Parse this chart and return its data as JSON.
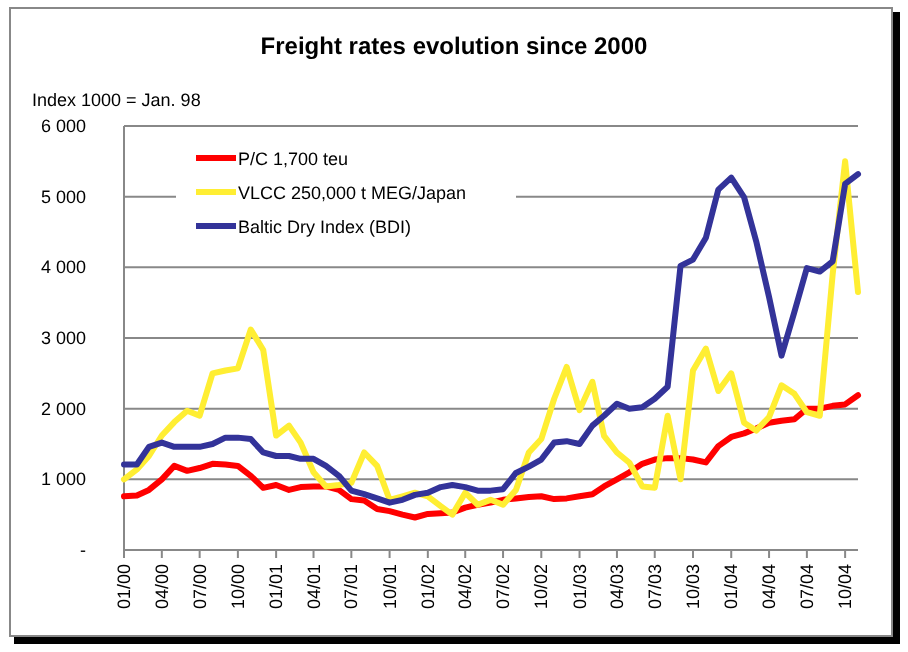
{
  "chart_data": {
    "type": "line",
    "title": "Freight rates evolution since 2000",
    "ylabel": "Index 1000 = Jan. 98",
    "x": [
      "2000-01",
      "2000-02",
      "2000-03",
      "2000-04",
      "2000-05",
      "2000-06",
      "2000-07",
      "2000-08",
      "2000-09",
      "2000-10",
      "2000-11",
      "2000-12",
      "2001-01",
      "2001-02",
      "2001-03",
      "2001-04",
      "2001-05",
      "2001-06",
      "2001-07",
      "2001-08",
      "2001-09",
      "2001-10",
      "2001-11",
      "2001-12",
      "2002-01",
      "2002-02",
      "2002-03",
      "2002-04",
      "2002-05",
      "2002-06",
      "2002-07",
      "2002-08",
      "2002-09",
      "2002-10",
      "2002-11",
      "2002-12",
      "2003-01",
      "2003-02",
      "2003-03",
      "2003-04",
      "2003-05",
      "2003-06",
      "2003-07",
      "2003-08",
      "2003-09",
      "2003-10",
      "2003-11",
      "2003-12",
      "2004-01",
      "2004-02",
      "2004-03",
      "2004-04",
      "2004-05",
      "2004-06",
      "2004-07",
      "2004-08",
      "2004-09",
      "2004-10",
      "2004-11"
    ],
    "series": [
      {
        "name": "P/C 1,700 teu",
        "color": "#ff0000",
        "values": [
          760,
          770,
          850,
          1000,
          1190,
          1120,
          1160,
          1220,
          1210,
          1190,
          1050,
          880,
          920,
          850,
          890,
          900,
          900,
          850,
          720,
          700,
          580,
          550,
          500,
          460,
          510,
          520,
          530,
          600,
          640,
          670,
          710,
          730,
          750,
          760,
          720,
          730,
          760,
          790,
          900,
          1000,
          1100,
          1220,
          1280,
          1300,
          1300,
          1280,
          1240,
          1470,
          1600,
          1650,
          1720,
          1800,
          1830,
          1850,
          2000,
          2000,
          2040,
          2060,
          2190
        ]
      },
      {
        "name": "VLCC 250,000 t MEG/Japan",
        "color": "#ffee33",
        "values": [
          1000,
          1140,
          1330,
          1620,
          1810,
          1970,
          1900,
          2500,
          2540,
          2570,
          3120,
          2830,
          1620,
          1760,
          1520,
          1100,
          900,
          920,
          950,
          1380,
          1190,
          710,
          760,
          810,
          760,
          620,
          500,
          810,
          640,
          710,
          640,
          850,
          1380,
          1570,
          2140,
          2590,
          1980,
          2380,
          1615,
          1380,
          1235,
          900,
          880,
          1900,
          1000,
          2540,
          2850,
          2250,
          2500,
          1800,
          1690,
          1880,
          2330,
          2210,
          1950,
          1900,
          3900,
          5500,
          3650
        ]
      },
      {
        "name": "Baltic Dry Index (BDI)",
        "color": "#333399",
        "values": [
          1210,
          1210,
          1460,
          1520,
          1460,
          1460,
          1460,
          1500,
          1590,
          1590,
          1570,
          1380,
          1330,
          1330,
          1290,
          1290,
          1190,
          1050,
          840,
          790,
          730,
          670,
          710,
          780,
          810,
          890,
          920,
          890,
          840,
          840,
          860,
          1090,
          1180,
          1280,
          1520,
          1540,
          1500,
          1760,
          1900,
          2070,
          2000,
          2020,
          2140,
          2310,
          4020,
          4110,
          4420,
          5100,
          5270,
          4990,
          4370,
          3580,
          2750,
          3370,
          3990,
          3940,
          4085,
          5180,
          5320
        ]
      }
    ],
    "xlim": [
      "2000-01",
      "2004-11"
    ],
    "xticks": [
      {
        "value": "2000-01",
        "label": "01/00"
      },
      {
        "value": "2000-04",
        "label": "04/00"
      },
      {
        "value": "2000-07",
        "label": "07/00"
      },
      {
        "value": "2000-10",
        "label": "10/00"
      },
      {
        "value": "2001-01",
        "label": "01/01"
      },
      {
        "value": "2001-04",
        "label": "04/01"
      },
      {
        "value": "2001-07",
        "label": "07/01"
      },
      {
        "value": "2001-10",
        "label": "10/01"
      },
      {
        "value": "2002-01",
        "label": "01/02"
      },
      {
        "value": "2002-04",
        "label": "04/02"
      },
      {
        "value": "2002-07",
        "label": "07/02"
      },
      {
        "value": "2002-10",
        "label": "10/02"
      },
      {
        "value": "2003-01",
        "label": "01/03"
      },
      {
        "value": "2003-04",
        "label": "04/03"
      },
      {
        "value": "2003-07",
        "label": "07/03"
      },
      {
        "value": "2003-10",
        "label": "10/03"
      },
      {
        "value": "2004-01",
        "label": "01/04"
      },
      {
        "value": "2004-04",
        "label": "04/04"
      },
      {
        "value": "2004-07",
        "label": "07/04"
      },
      {
        "value": "2004-10",
        "label": "10/04"
      }
    ],
    "ylim": [
      0,
      6000
    ],
    "yticks": [
      {
        "value": 0,
        "label": "-"
      },
      {
        "value": 1000,
        "label": "1 000"
      },
      {
        "value": 2000,
        "label": "2 000"
      },
      {
        "value": 3000,
        "label": "3 000"
      },
      {
        "value": 4000,
        "label": "4 000"
      },
      {
        "value": 5000,
        "label": "5 000"
      },
      {
        "value": 6000,
        "label": "6 000"
      }
    ],
    "grid": "y",
    "legend": "top left",
    "marker": "none",
    "line_style": "solid"
  }
}
